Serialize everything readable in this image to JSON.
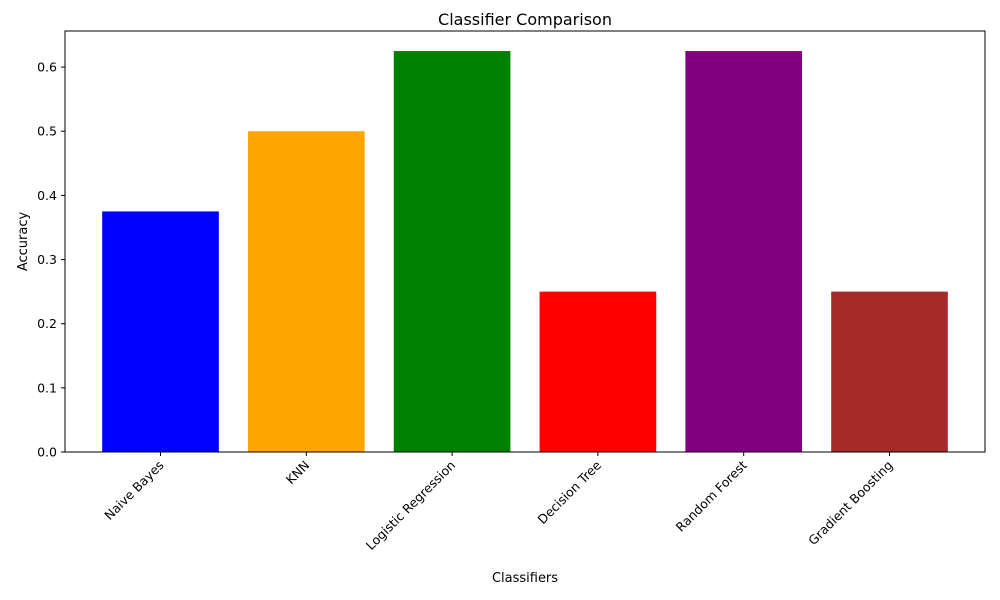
{
  "chart_data": {
    "type": "bar",
    "title": "Classifier Comparison",
    "xlabel": "Classifiers",
    "ylabel": "Accuracy",
    "categories": [
      "Naive Bayes",
      "KNN",
      "Logistic Regression",
      "Decision Tree",
      "Random Forest",
      "Gradient Boosting"
    ],
    "values": [
      0.375,
      0.5,
      0.625,
      0.25,
      0.625,
      0.25
    ],
    "colors": [
      "#0000ff",
      "#ffa500",
      "#008000",
      "#ff0000",
      "#800080",
      "#a52a2a"
    ],
    "ylim": [
      0,
      0.65625
    ],
    "yticks": [
      0.0,
      0.1,
      0.2,
      0.3,
      0.4,
      0.5,
      0.6
    ],
    "ytick_labels": [
      "0.0",
      "0.1",
      "0.2",
      "0.3",
      "0.4",
      "0.5",
      "0.6"
    ],
    "grid": false,
    "legend": "none",
    "xtick_rotation": 45
  }
}
